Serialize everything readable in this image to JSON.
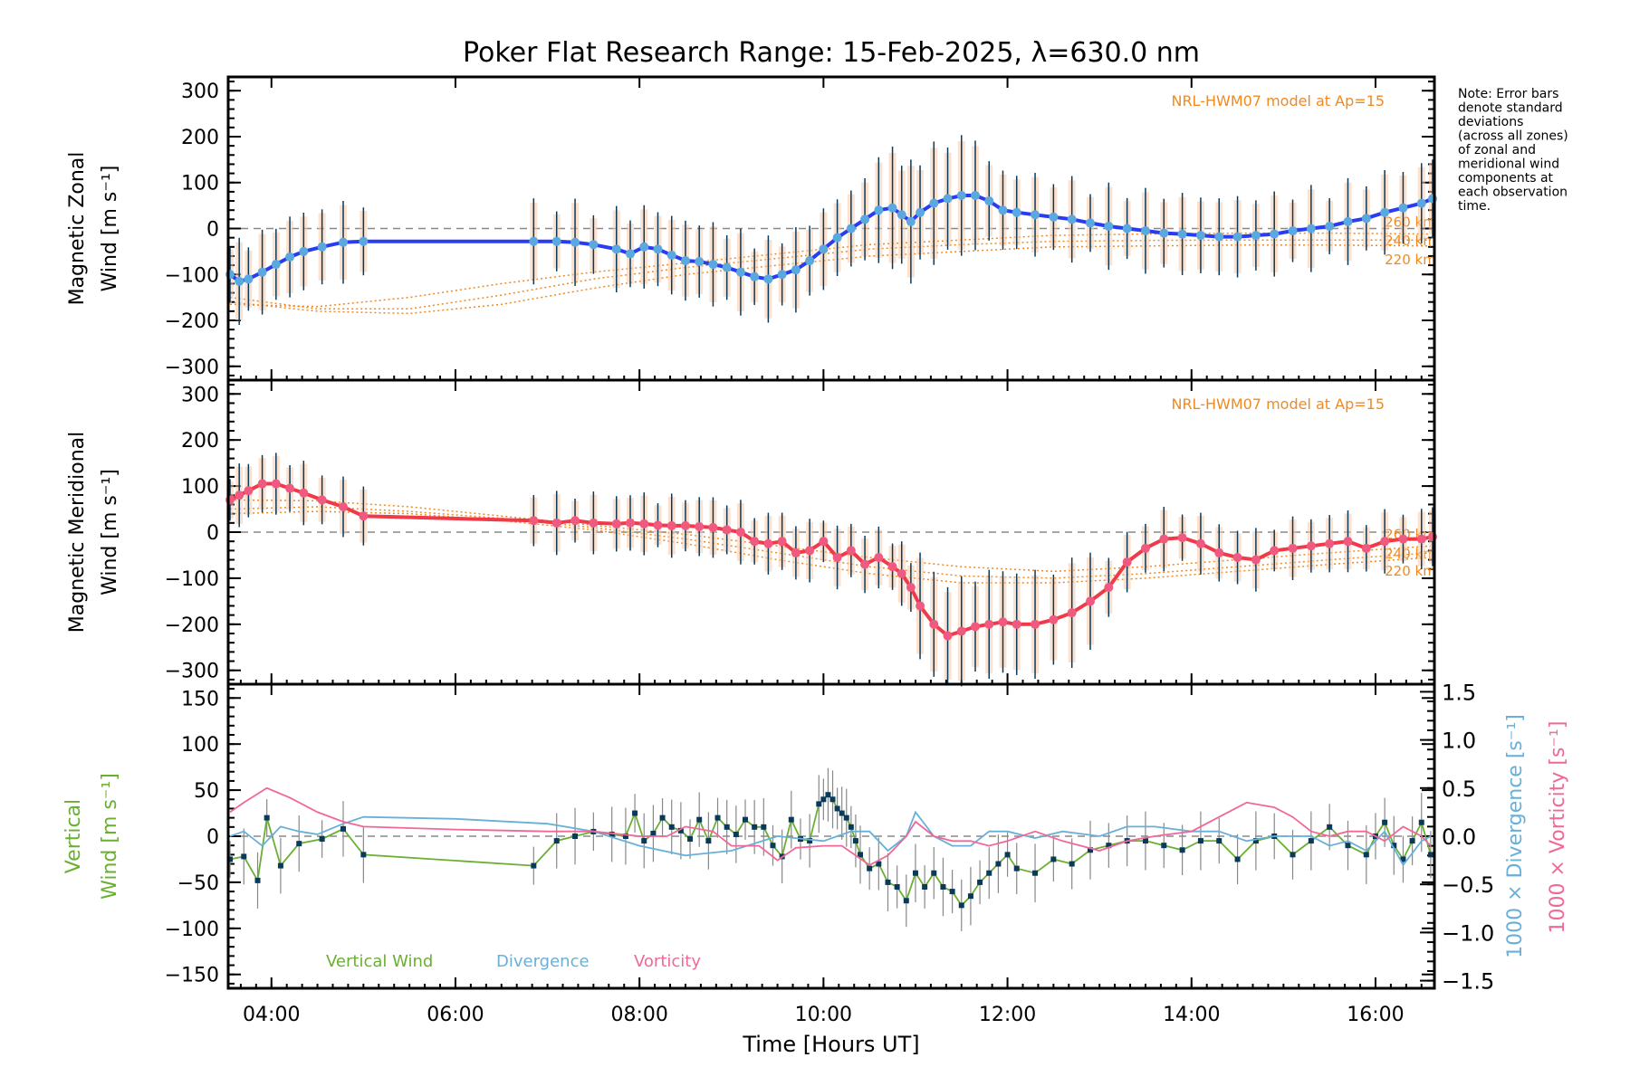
{
  "chart_data": {
    "type": "line",
    "title": "Poker Flat Research Range: 15-Feb-2025, λ=630.0 nm",
    "xlabel": "Time [Hours UT]",
    "xlim_hours": [
      3.53,
      16.64
    ],
    "x_ticks": [
      {
        "h": 4,
        "label": "04:00"
      },
      {
        "h": 6,
        "label": "06:00"
      },
      {
        "h": 8,
        "label": "08:00"
      },
      {
        "h": 10,
        "label": "10:00"
      },
      {
        "h": 12,
        "label": "12:00"
      },
      {
        "h": 14,
        "label": "14:00"
      },
      {
        "h": 16,
        "label": "16:00"
      }
    ],
    "note": [
      "Note: Error bars",
      "denote standard",
      "deviations",
      "(across all zones)",
      "of zonal and",
      "meridional wind",
      "components at",
      "each observation",
      "time."
    ],
    "panels": [
      {
        "name": "zonal",
        "ylabel_line1": "Magnetic Zonal",
        "ylabel_line2": "Wind [m s⁻¹]",
        "ylim": [
          -330,
          330
        ],
        "yticks": [
          300,
          200,
          100,
          0,
          -100,
          -200,
          -300
        ],
        "model_label": "NRL-HWM07 model at Ap=15",
        "model_altitudes": [
          "260 km",
          "240 km",
          "220 km"
        ],
        "line_color": "#2a3cf0",
        "marker_color": "#5aa8e0",
        "series": {
          "name": "Zonal wind",
          "x": [
            3.55,
            3.65,
            3.75,
            3.9,
            4.05,
            4.2,
            4.35,
            4.55,
            4.78,
            5.0,
            6.85,
            7.1,
            7.3,
            7.5,
            7.75,
            7.9,
            8.05,
            8.2,
            8.35,
            8.5,
            8.65,
            8.8,
            8.95,
            9.1,
            9.25,
            9.4,
            9.55,
            9.7,
            9.85,
            10.0,
            10.15,
            10.3,
            10.45,
            10.6,
            10.75,
            10.85,
            10.95,
            11.05,
            11.2,
            11.35,
            11.5,
            11.65,
            11.8,
            11.95,
            12.1,
            12.3,
            12.5,
            12.7,
            12.9,
            13.1,
            13.3,
            13.5,
            13.7,
            13.9,
            14.1,
            14.3,
            14.5,
            14.7,
            14.9,
            15.1,
            15.3,
            15.5,
            15.7,
            15.9,
            16.1,
            16.3,
            16.5,
            16.62
          ],
          "y": [
            -100,
            -115,
            -110,
            -95,
            -78,
            -62,
            -50,
            -40,
            -30,
            -28,
            -28,
            -28,
            -30,
            -35,
            -45,
            -55,
            -40,
            -45,
            -58,
            -70,
            -72,
            -78,
            -85,
            -95,
            -105,
            -110,
            -100,
            -90,
            -70,
            -45,
            -20,
            0,
            20,
            40,
            45,
            30,
            15,
            35,
            55,
            65,
            72,
            72,
            60,
            40,
            35,
            30,
            25,
            20,
            12,
            5,
            0,
            -5,
            -10,
            -12,
            -15,
            -18,
            -18,
            -15,
            -12,
            -5,
            0,
            5,
            15,
            22,
            35,
            45,
            55,
            65
          ]
        },
        "model_curves": [
          {
            "alt": "260 km",
            "x": [
              3.55,
              4.5,
              5.5,
              6.5,
              7.5,
              8.5,
              9.5,
              10.5,
              11.5,
              12.5,
              13.5,
              14.5,
              15.5,
              16.6
            ],
            "y": [
              -165,
              -170,
              -150,
              -120,
              -95,
              -75,
              -55,
              -35,
              -25,
              -15,
              -12,
              -10,
              -10,
              -12
            ]
          },
          {
            "alt": "240 km",
            "x": [
              3.55,
              4.5,
              5.5,
              6.5,
              7.5,
              8.5,
              9.5,
              10.5,
              11.5,
              12.5,
              13.5,
              14.5,
              15.5,
              16.6
            ],
            "y": [
              -150,
              -175,
              -175,
              -145,
              -110,
              -85,
              -65,
              -45,
              -35,
              -28,
              -26,
              -25,
              -25,
              -25
            ]
          },
          {
            "alt": "220 km",
            "x": [
              3.55,
              4.5,
              5.5,
              6.5,
              7.5,
              8.5,
              9.5,
              10.5,
              11.5,
              12.5,
              13.5,
              14.5,
              15.5,
              16.6
            ],
            "y": [
              -160,
              -180,
              -185,
              -165,
              -130,
              -100,
              -80,
              -60,
              -50,
              -40,
              -38,
              -36,
              -36,
              -38
            ]
          }
        ]
      },
      {
        "name": "meridional",
        "ylabel_line1": "Magnetic Meridional",
        "ylabel_line2": "Wind [m s⁻¹]",
        "ylim": [
          -330,
          330
        ],
        "yticks": [
          300,
          200,
          100,
          0,
          -100,
          -200,
          -300
        ],
        "model_label": "NRL-HWM07 model at Ap=15",
        "model_altitudes": [
          "260 km",
          "240 km",
          "220 km"
        ],
        "line_color": "#f03a48",
        "marker_color": "#f05a80",
        "series": {
          "name": "Meridional wind",
          "x": [
            3.55,
            3.65,
            3.75,
            3.9,
            4.05,
            4.2,
            4.35,
            4.55,
            4.78,
            5.0,
            6.85,
            7.1,
            7.3,
            7.5,
            7.75,
            7.9,
            8.05,
            8.2,
            8.35,
            8.5,
            8.65,
            8.8,
            8.95,
            9.1,
            9.25,
            9.4,
            9.55,
            9.7,
            9.85,
            10.0,
            10.15,
            10.3,
            10.45,
            10.6,
            10.75,
            10.85,
            10.95,
            11.05,
            11.2,
            11.35,
            11.5,
            11.65,
            11.8,
            11.95,
            12.1,
            12.3,
            12.5,
            12.7,
            12.9,
            13.1,
            13.3,
            13.5,
            13.7,
            13.9,
            14.1,
            14.3,
            14.5,
            14.7,
            14.9,
            15.1,
            15.3,
            15.5,
            15.7,
            15.9,
            16.1,
            16.3,
            16.5,
            16.62
          ],
          "y": [
            70,
            80,
            90,
            105,
            105,
            95,
            85,
            70,
            55,
            35,
            25,
            20,
            25,
            20,
            18,
            20,
            18,
            15,
            14,
            14,
            12,
            10,
            5,
            0,
            -20,
            -25,
            -20,
            -45,
            -40,
            -20,
            -55,
            -40,
            -70,
            -55,
            -75,
            -90,
            -120,
            -160,
            -200,
            -225,
            -215,
            -205,
            -200,
            -195,
            -200,
            -200,
            -190,
            -175,
            -150,
            -120,
            -65,
            -35,
            -15,
            -12,
            -25,
            -45,
            -55,
            -60,
            -40,
            -35,
            -30,
            -25,
            -20,
            -35,
            -20,
            -15,
            -15,
            -10
          ]
        },
        "model_curves": [
          {
            "alt": "260 km",
            "x": [
              3.55,
              4.5,
              5.5,
              6.5,
              7.5,
              8.5,
              9.5,
              10.5,
              11.5,
              12.5,
              13.5,
              14.5,
              15.5,
              16.6
            ],
            "y": [
              70,
              68,
              55,
              35,
              15,
              -5,
              -30,
              -55,
              -75,
              -85,
              -75,
              -60,
              -45,
              -30
            ]
          },
          {
            "alt": "240 km",
            "x": [
              3.55,
              4.5,
              5.5,
              6.5,
              7.5,
              8.5,
              9.5,
              10.5,
              11.5,
              12.5,
              13.5,
              14.5,
              15.5,
              16.6
            ],
            "y": [
              50,
              55,
              45,
              30,
              10,
              -15,
              -45,
              -75,
              -95,
              -100,
              -90,
              -75,
              -60,
              -45
            ]
          },
          {
            "alt": "220 km",
            "x": [
              3.55,
              4.5,
              5.5,
              6.5,
              7.5,
              8.5,
              9.5,
              10.5,
              11.5,
              12.5,
              13.5,
              14.5,
              15.5,
              16.6
            ],
            "y": [
              40,
              45,
              40,
              25,
              5,
              -25,
              -60,
              -90,
              -110,
              -110,
              -100,
              -85,
              -70,
              -55
            ]
          }
        ]
      },
      {
        "name": "vertical",
        "ylabel_line1": "Vertical",
        "ylabel_line2": "Wind [m s⁻¹]",
        "ylim": [
          -165,
          165
        ],
        "yticks": [
          150,
          100,
          50,
          0,
          -50,
          -100,
          -150
        ],
        "right_ylim": [
          -1.5,
          1.5
        ],
        "right_yticks": [
          "1.5",
          "1.0",
          "0.5",
          "0.0",
          "−0.5",
          "−1.0",
          "−1.5"
        ],
        "right_ylabel_divergence": "1000 × Divergence [s⁻¹]",
        "right_ylabel_vorticity": "1000 × Vorticity [s⁻¹]",
        "legend": [
          {
            "label": "Vertical Wind",
            "color": "#6ab030"
          },
          {
            "label": "Divergence",
            "color": "#68b0d8"
          },
          {
            "label": "Vorticity",
            "color": "#f06898"
          }
        ],
        "series": [
          {
            "name": "Vertical Wind",
            "color": "#6ab030",
            "x": [
              3.55,
              3.7,
              3.85,
              3.95,
              4.1,
              4.3,
              4.55,
              4.78,
              5.0,
              6.85,
              7.1,
              7.3,
              7.5,
              7.7,
              7.85,
              7.95,
              8.05,
              8.15,
              8.25,
              8.35,
              8.45,
              8.55,
              8.65,
              8.75,
              8.85,
              8.95,
              9.05,
              9.15,
              9.25,
              9.35,
              9.45,
              9.55,
              9.65,
              9.75,
              9.85,
              9.95,
              10.0,
              10.05,
              10.1,
              10.15,
              10.2,
              10.25,
              10.3,
              10.35,
              10.4,
              10.5,
              10.6,
              10.7,
              10.8,
              10.9,
              11.0,
              11.1,
              11.2,
              11.3,
              11.4,
              11.5,
              11.6,
              11.7,
              11.8,
              11.9,
              12.0,
              12.1,
              12.3,
              12.5,
              12.7,
              12.9,
              13.1,
              13.3,
              13.5,
              13.7,
              13.9,
              14.1,
              14.3,
              14.5,
              14.7,
              14.9,
              15.1,
              15.3,
              15.5,
              15.7,
              15.9,
              16.0,
              16.1,
              16.2,
              16.3,
              16.4,
              16.5,
              16.6
            ],
            "y": [
              -25,
              -22,
              -48,
              20,
              -32,
              -8,
              -3,
              8,
              -20,
              -32,
              -5,
              0,
              5,
              2,
              0,
              25,
              -5,
              3,
              20,
              10,
              6,
              -3,
              18,
              -5,
              20,
              10,
              2,
              18,
              10,
              10,
              -10,
              -22,
              18,
              -3,
              -5,
              35,
              40,
              45,
              40,
              30,
              25,
              20,
              10,
              -5,
              -20,
              -35,
              -30,
              -50,
              -55,
              -70,
              -40,
              -55,
              -40,
              -55,
              -60,
              -75,
              -65,
              -50,
              -40,
              -30,
              -20,
              -35,
              -40,
              -25,
              -30,
              -15,
              -10,
              -5,
              -5,
              -10,
              -15,
              -5,
              -5,
              -25,
              -5,
              0,
              -20,
              -5,
              10,
              -10,
              -20,
              0,
              15,
              -10,
              -25,
              -5,
              15,
              -20
            ]
          },
          {
            "name": "Divergence",
            "color": "#68b0d8",
            "x": [
              3.55,
              3.7,
              3.9,
              4.1,
              4.3,
              4.5,
              4.78,
              5.0,
              6.0,
              7.0,
              7.5,
              8.0,
              8.5,
              9.0,
              9.5,
              10.0,
              10.3,
              10.5,
              10.7,
              10.9,
              11.0,
              11.2,
              11.4,
              11.6,
              11.8,
              12.0,
              12.3,
              12.6,
              13.0,
              13.3,
              13.6,
              14.0,
              14.3,
              14.6,
              14.9,
              15.1,
              15.3,
              15.5,
              15.7,
              15.9,
              16.1,
              16.3,
              16.5,
              16.6
            ],
            "y": [
              0.0,
              0.05,
              -0.1,
              0.1,
              0.05,
              0.02,
              0.13,
              0.2,
              0.18,
              0.13,
              0.05,
              -0.1,
              -0.2,
              -0.15,
              0.0,
              -0.05,
              0.05,
              0.05,
              -0.15,
              0.0,
              0.25,
              0.0,
              -0.1,
              -0.1,
              0.05,
              0.05,
              -0.02,
              0.05,
              0.0,
              0.1,
              0.1,
              0.05,
              0.05,
              -0.05,
              0.0,
              0.0,
              0.0,
              -0.1,
              -0.05,
              -0.15,
              0.05,
              -0.3,
              -0.05,
              0.0
            ]
          },
          {
            "name": "Vorticity",
            "color": "#f06898",
            "x": [
              3.55,
              3.7,
              3.95,
              4.2,
              4.5,
              4.78,
              5.0,
              6.0,
              7.0,
              7.5,
              8.0,
              8.3,
              8.5,
              8.8,
              9.0,
              9.3,
              9.5,
              9.7,
              10.0,
              10.2,
              10.5,
              10.7,
              10.9,
              11.0,
              11.2,
              11.4,
              11.6,
              11.8,
              12.0,
              12.3,
              12.6,
              13.0,
              13.3,
              13.6,
              14.0,
              14.3,
              14.6,
              14.9,
              15.1,
              15.3,
              15.5,
              15.7,
              15.9,
              16.1,
              16.3,
              16.5,
              16.6
            ],
            "y": [
              0.25,
              0.35,
              0.5,
              0.4,
              0.25,
              0.15,
              0.1,
              0.07,
              0.05,
              0.05,
              0.0,
              0.0,
              0.1,
              0.05,
              -0.1,
              -0.1,
              -0.25,
              -0.12,
              -0.1,
              -0.1,
              -0.3,
              -0.2,
              0.0,
              0.15,
              0.0,
              -0.05,
              -0.05,
              -0.1,
              -0.05,
              0.05,
              -0.05,
              -0.15,
              -0.05,
              0.0,
              0.05,
              0.2,
              0.35,
              0.3,
              0.2,
              0.05,
              0.0,
              0.05,
              0.05,
              -0.05,
              0.1,
              0.0,
              -0.1
            ]
          }
        ]
      }
    ]
  }
}
